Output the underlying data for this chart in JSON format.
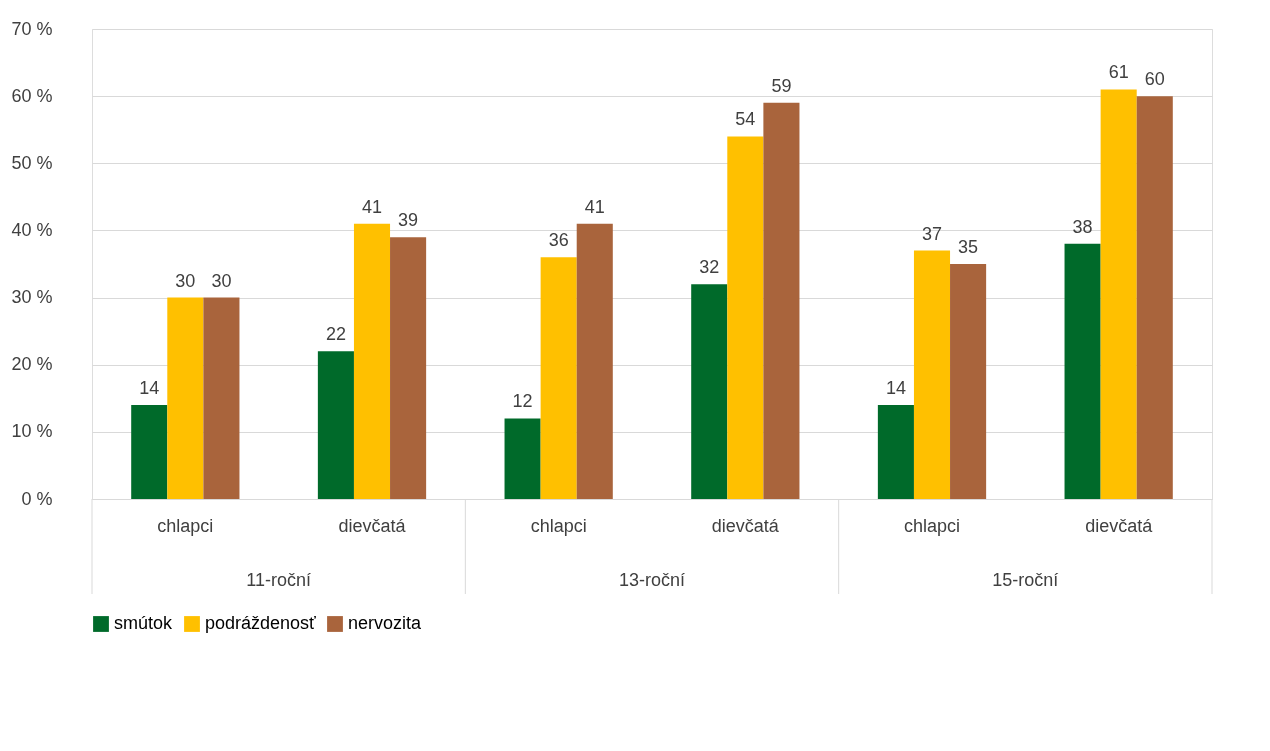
{
  "chart_data": {
    "type": "bar",
    "categories": [
      "chlapci",
      "dievčatá",
      "chlapci",
      "dievčatá",
      "chlapci",
      "dievčatá"
    ],
    "series": [
      {
        "name": "smútok",
        "color": "#006a2a",
        "values": [
          14,
          22,
          12,
          32,
          14,
          38
        ]
      },
      {
        "name": "podráždenosť",
        "color": "#ffc000",
        "values": [
          30,
          41,
          36,
          54,
          37,
          61
        ]
      },
      {
        "name": "nervozita",
        "color": "#a9643c",
        "values": [
          30,
          39,
          41,
          59,
          35,
          60
        ]
      }
    ],
    "annotations": [
      "11-roční",
      "13-roční",
      "15-roční"
    ],
    "ylim": [
      0,
      70
    ],
    "yticks": [
      {
        "value": 0,
        "label": "0 %"
      },
      {
        "value": 10,
        "label": "10 %"
      },
      {
        "value": 20,
        "label": "20 %"
      },
      {
        "value": 30,
        "label": "30 %"
      },
      {
        "value": 40,
        "label": "40 %"
      },
      {
        "value": 50,
        "label": "50 %"
      },
      {
        "value": 60,
        "label": "60 %"
      },
      {
        "value": 70,
        "label": "70 %"
      }
    ],
    "grid": "y",
    "legend": "bottom",
    "data_labels": true
  }
}
